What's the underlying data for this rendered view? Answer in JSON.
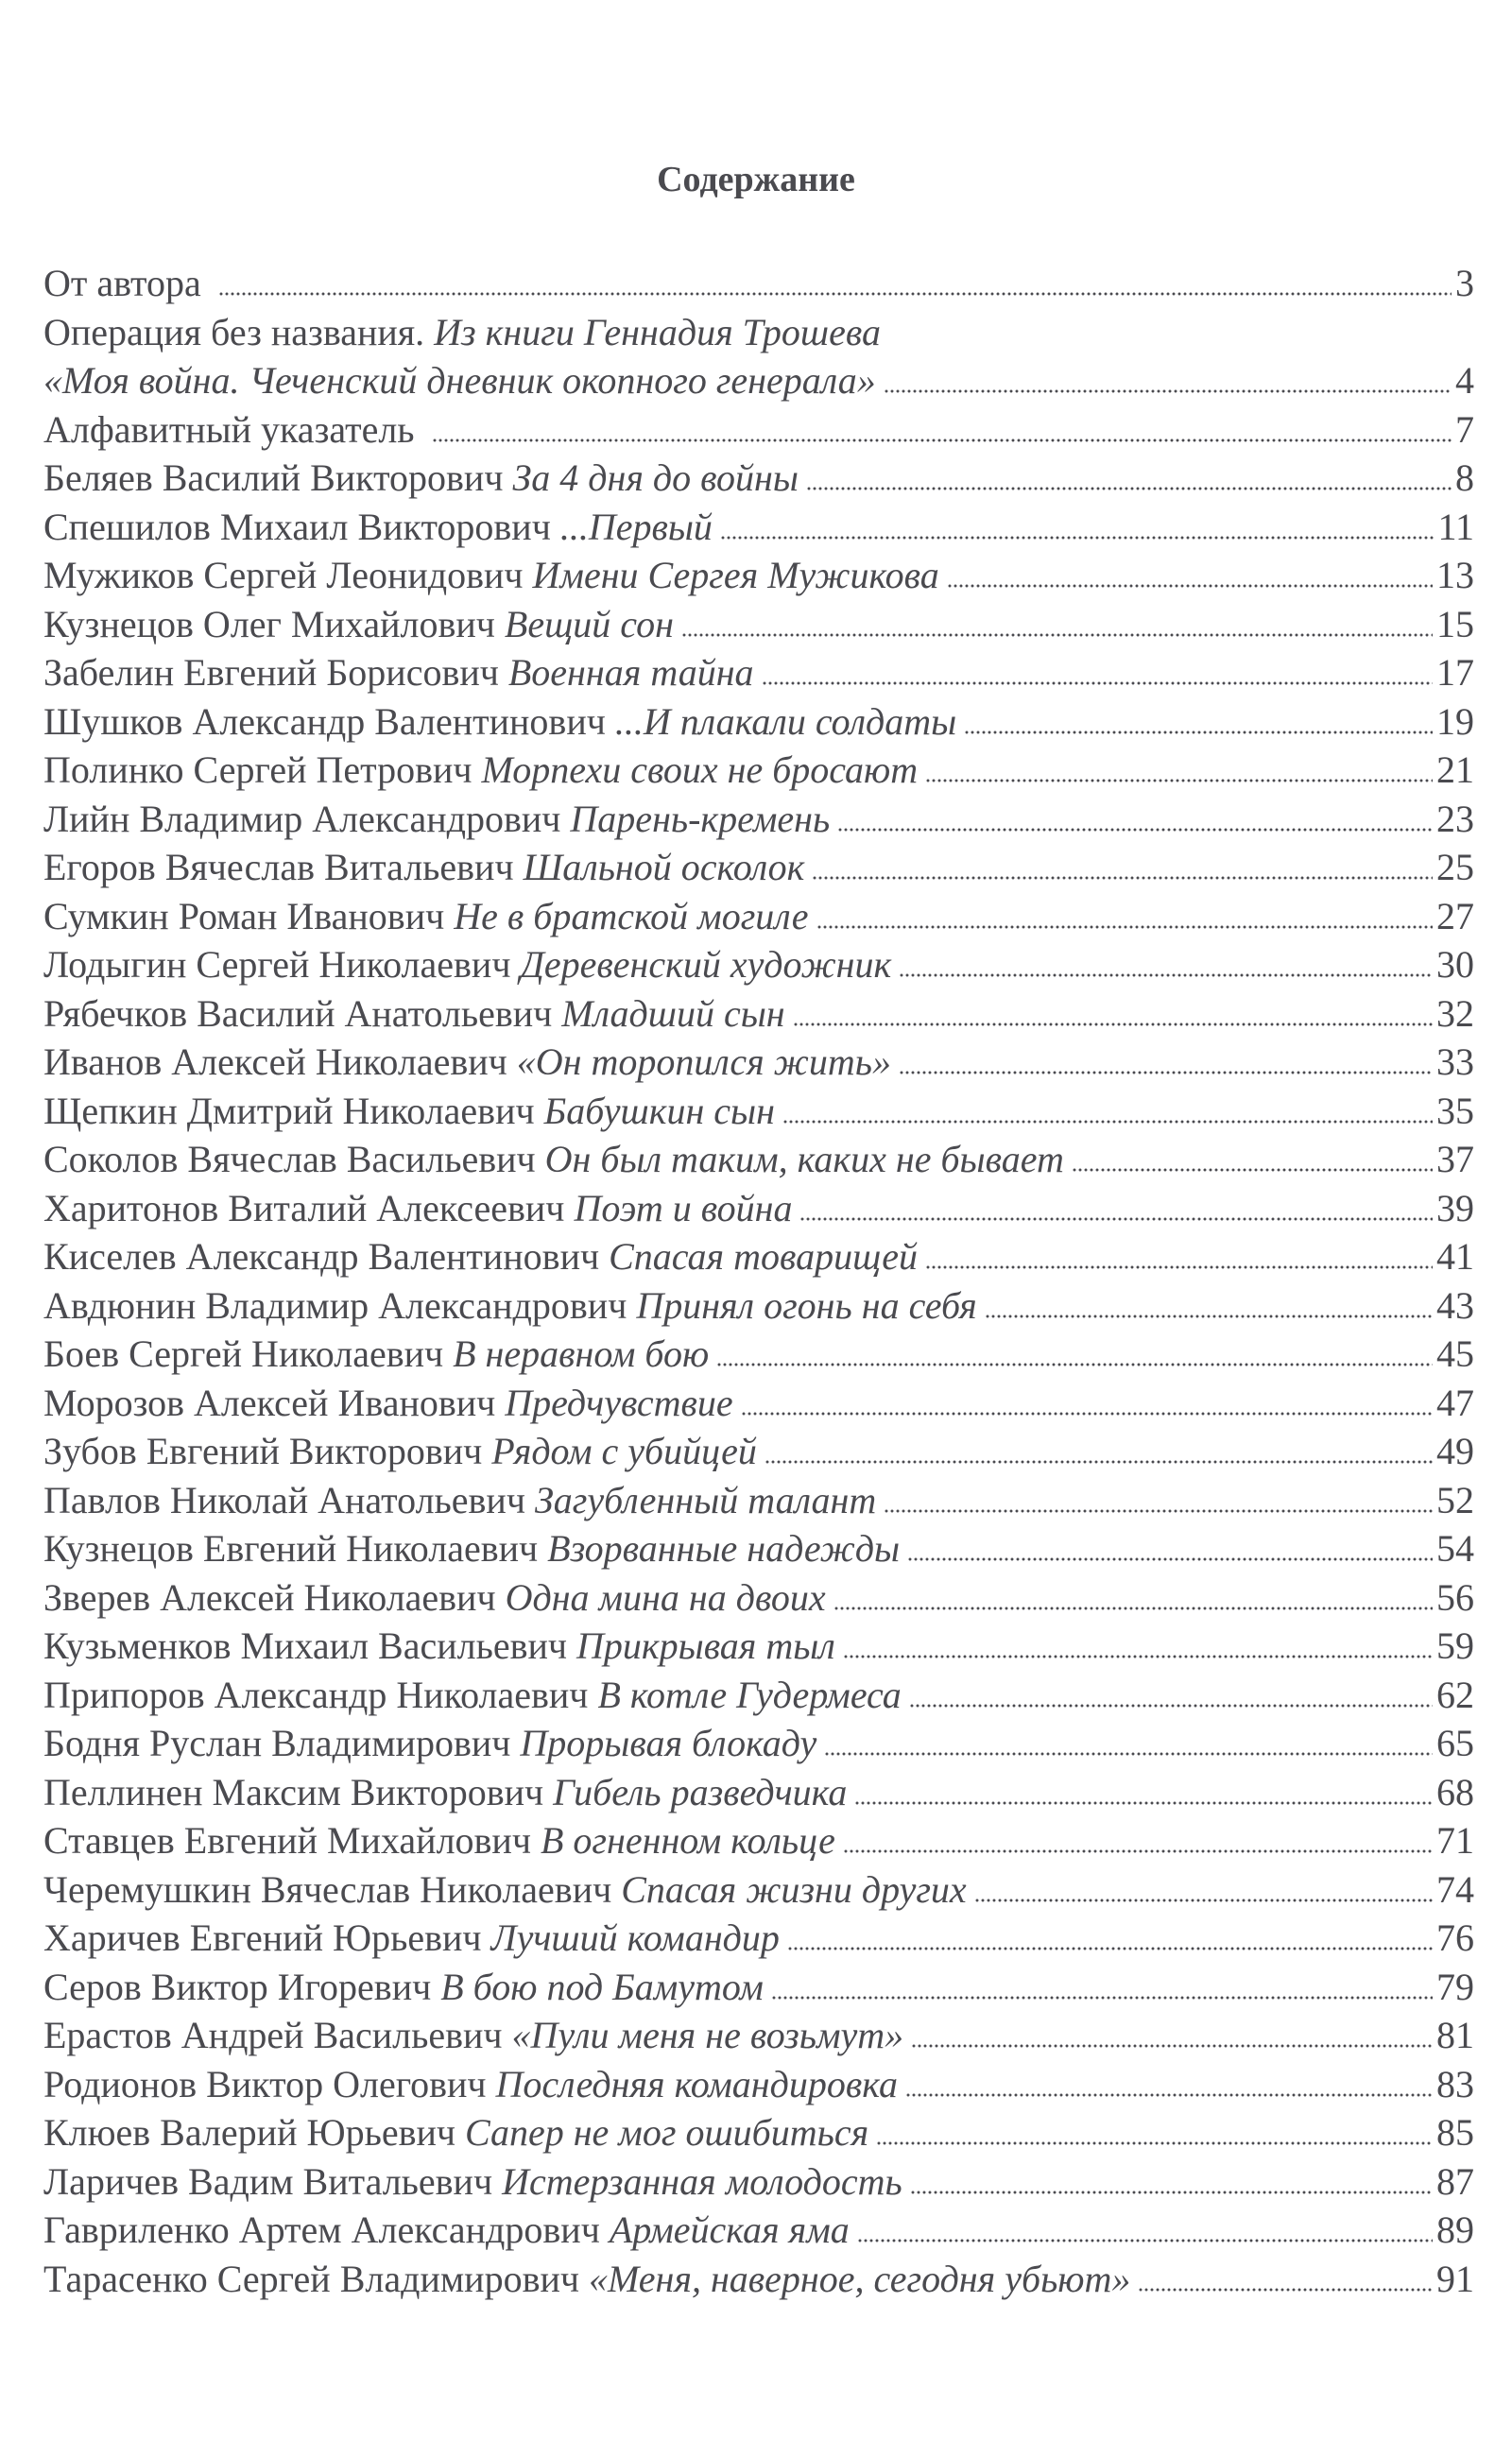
{
  "title": "Содержание",
  "entries": [
    {
      "name": "От автора",
      "work": "",
      "page": "3"
    },
    {
      "name": "Операция без названия.",
      "work": "Из книги Геннадия Трошева",
      "page": ""
    },
    {
      "name": "",
      "work": "«Моя война. Чеченский дневник окопного генерала»",
      "page": "4"
    },
    {
      "name": "Алфавитный указатель",
      "work": "",
      "page": "7"
    },
    {
      "name": "Беляев Василий Викторович",
      "work": "За 4 дня до войны",
      "page": "8"
    },
    {
      "name": "Спешилов Михаил Викторович",
      "work": "...Первый",
      "page": "11"
    },
    {
      "name": "Мужиков Сергей Леонидович",
      "work": "Имени Сергея Мужикова",
      "page": "13"
    },
    {
      "name": "Кузнецов Олег Михайлович",
      "work": "Вещий сон",
      "page": "15"
    },
    {
      "name": "Забелин Евгений Борисович",
      "work": "Военная тайна",
      "page": "17"
    },
    {
      "name": "Шушков Александр Валентинович",
      "work": "...И плакали солдаты",
      "page": "19"
    },
    {
      "name": "Полинко Сергей Петрович",
      "work": "Морпехи своих не бросают",
      "page": "21"
    },
    {
      "name": "Лийн Владимир Александрович",
      "work": "Парень-кремень",
      "page": "23"
    },
    {
      "name": "Егоров Вячеслав Витальевич",
      "work": "Шальной осколок",
      "page": "25"
    },
    {
      "name": "Сумкин Роман Иванович",
      "work": "Не в братской могиле",
      "page": "27"
    },
    {
      "name": "Лодыгин Сергей Николаевич",
      "work": "Деревенский художник",
      "page": "30"
    },
    {
      "name": "Рябечков Василий Анатольевич",
      "work": "Младший сын",
      "page": "32"
    },
    {
      "name": "Иванов Алексей Николаевич",
      "work": "«Он торопился жить»",
      "page": "33"
    },
    {
      "name": "Щепкин Дмитрий Николаевич",
      "work": "Бабушкин сын",
      "page": "35"
    },
    {
      "name": "Соколов Вячеслав Васильевич",
      "work": "Он был таким, каких не бывает",
      "page": "37"
    },
    {
      "name": "Харитонов Виталий Алексеевич",
      "work": "Поэт и война",
      "page": "39"
    },
    {
      "name": "Киселев Александр Валентинович",
      "work": "Спасая товарищей",
      "page": "41"
    },
    {
      "name": "Авдюнин Владимир Александрович",
      "work": "Принял огонь на себя",
      "page": "43"
    },
    {
      "name": "Боев Сергей Николаевич",
      "work": "В неравном бою",
      "page": "45"
    },
    {
      "name": "Морозов Алексей Иванович",
      "work": "Предчувствие",
      "page": "47"
    },
    {
      "name": "Зубов Евгений Викторович",
      "work": "Рядом с убийцей",
      "page": "49"
    },
    {
      "name": "Павлов Николай Анатольевич",
      "work": "Загубленный талант",
      "page": "52"
    },
    {
      "name": "Кузнецов Евгений Николаевич",
      "work": "Взорванные надежды",
      "page": "54"
    },
    {
      "name": "Зверев Алексей Николаевич",
      "work": "Одна мина на двоих",
      "page": "56"
    },
    {
      "name": "Кузьменков Михаил Васильевич",
      "work": "Прикрывая тыл",
      "page": "59"
    },
    {
      "name": "Припоров Александр Николаевич",
      "work": "В котле Гудермеса",
      "page": "62"
    },
    {
      "name": "Бодня Руслан Владимирович",
      "work": "Прорывая блокаду",
      "page": "65"
    },
    {
      "name": "Пеллинен Максим Викторович",
      "work": "Гибель разведчика",
      "page": "68"
    },
    {
      "name": "Ставцев Евгений Михайлович",
      "work": "В огненном кольце",
      "page": "71"
    },
    {
      "name": "Черемушкин Вячеслав Николаевич",
      "work": "Спасая жизни других",
      "page": "74"
    },
    {
      "name": "Харичев Евгений Юрьевич",
      "work": "Лучший командир",
      "page": "76"
    },
    {
      "name": "Серов Виктор Игоревич",
      "work": "В бою под Бамутом",
      "page": "79"
    },
    {
      "name": "Ерастов Андрей Васильевич",
      "work": "«Пули меня не возьмут»",
      "page": "81"
    },
    {
      "name": "Родионов Виктор Олегович",
      "work": "Последняя командировка",
      "page": "83"
    },
    {
      "name": "Клюев Валерий Юрьевич",
      "work": "Сапер не мог ошибиться",
      "page": "85"
    },
    {
      "name": "Ларичев Вадим Витальевич",
      "work": "Истерзанная молодость",
      "page": "87"
    },
    {
      "name": "Гавриленко Артем Александрович",
      "work": "Армейская яма",
      "page": "89"
    },
    {
      "name": "Тарасенко Сергей Владимирович",
      "work": "«Меня, наверное, сегодня убьют»",
      "page": "91"
    }
  ]
}
